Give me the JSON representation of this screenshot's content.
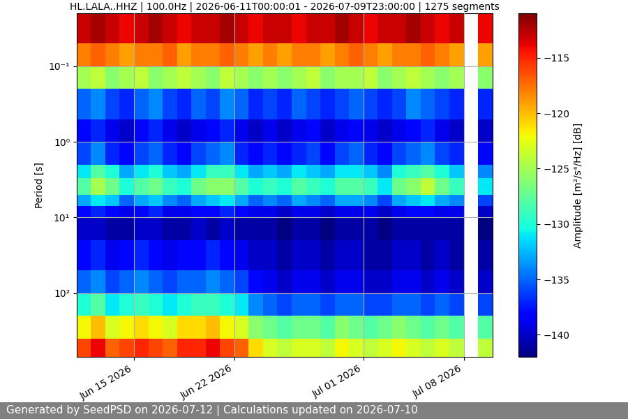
{
  "chart_data": {
    "type": "heatmap",
    "title": "HL.LALA..HHZ | 100.0Hz | 2026-06-11T00:00:01 - 2026-07-09T23:00:00 | 1275 segments",
    "y_label": "Period [s]",
    "colorbar_label": "Amplitude [m²/s⁴/Hz] [dB]",
    "footer": "Generated by SeedPSD on 2026-07-12 | Calculations updated on 2026-07-10",
    "log": "y",
    "grid": true,
    "xlim": [
      "2026-06-11",
      "2026-07-10"
    ],
    "xticks": [
      {
        "value": "2026-06-15",
        "label": "Jun 15 2026"
      },
      {
        "value": "2026-06-22",
        "label": "Jun 22 2026"
      },
      {
        "value": "2026-07-01",
        "label": "Jul 01 2026"
      },
      {
        "value": "2026-07-08",
        "label": "Jul 08 2026"
      }
    ],
    "ylim": [
      700,
      0.02
    ],
    "yticks": [
      {
        "value": 0.1,
        "label": "10⁻¹"
      },
      {
        "value": 1,
        "label": "10⁰"
      },
      {
        "value": 10,
        "label": "10¹"
      },
      {
        "value": 100,
        "label": "10²"
      }
    ],
    "colorbar_range": [
      -142,
      -111
    ],
    "colorbar_ticks": [
      {
        "value": -115,
        "label": "−115"
      },
      {
        "value": -120,
        "label": "−120"
      },
      {
        "value": -125,
        "label": "−125"
      },
      {
        "value": -130,
        "label": "−130"
      },
      {
        "value": -135,
        "label": "−135"
      },
      {
        "value": -140,
        "label": "−140"
      }
    ],
    "x_edges": [
      "2026-06-11",
      "2026-06-12",
      "2026-06-13",
      "2026-06-14",
      "2026-06-15",
      "2026-06-16",
      "2026-06-17",
      "2026-06-18",
      "2026-06-19",
      "2026-06-20",
      "2026-06-21",
      "2026-06-22",
      "2026-06-23",
      "2026-06-24",
      "2026-06-25",
      "2026-06-26",
      "2026-06-27",
      "2026-06-28",
      "2026-06-29",
      "2026-06-30",
      "2026-07-01",
      "2026-07-02",
      "2026-07-03",
      "2026-07-04",
      "2026-07-05",
      "2026-07-06",
      "2026-07-07",
      "2026-07-08",
      "2026-07-09",
      "2026-07-10"
    ],
    "y_edges": [
      0.02,
      0.05,
      0.1,
      0.2,
      0.5,
      1,
      2,
      3,
      5,
      7,
      10,
      20,
      50,
      100,
      200,
      400,
      700
    ],
    "cells": [
      [
        -113,
        -112,
        -113,
        -114,
        -113,
        -112,
        -113,
        -114,
        -113,
        -113,
        -112,
        -113,
        -114,
        -113,
        -113,
        -114,
        -113,
        -113,
        -112,
        -113,
        -114,
        -113,
        -113,
        -112,
        -113,
        -114,
        -113,
        null,
        -114
      ],
      [
        -118,
        -117,
        -118,
        -119,
        -118,
        -118,
        -117,
        -119,
        -118,
        -118,
        -117,
        -118,
        -119,
        -118,
        -119,
        -118,
        -118,
        -119,
        -118,
        -117,
        -118,
        -119,
        -118,
        -118,
        -117,
        -118,
        -119,
        null,
        -119
      ],
      [
        -125,
        -124,
        -126,
        -125,
        -124,
        -126,
        -125,
        -124,
        -125,
        -126,
        -124,
        -125,
        -126,
        -125,
        -126,
        -125,
        -124,
        -126,
        -125,
        -125,
        -124,
        -126,
        -125,
        -124,
        -125,
        -126,
        -125,
        null,
        -126
      ],
      [
        -135,
        -134,
        -136,
        -137,
        -135,
        -134,
        -136,
        -137,
        -135,
        -136,
        -134,
        -135,
        -137,
        -136,
        -137,
        -135,
        -136,
        -137,
        -136,
        -135,
        -136,
        -137,
        -136,
        -134,
        -135,
        -136,
        -137,
        null,
        -137
      ],
      [
        -138,
        -137,
        -139,
        -140,
        -138,
        -137,
        -139,
        -140,
        -139,
        -138,
        -137,
        -139,
        -140,
        -139,
        -140,
        -139,
        -138,
        -140,
        -139,
        -138,
        -139,
        -140,
        -139,
        -138,
        -137,
        -139,
        -140,
        null,
        -140
      ],
      [
        -136,
        -134,
        -137,
        -138,
        -136,
        -135,
        -137,
        -138,
        -136,
        -135,
        -134,
        -137,
        -138,
        -137,
        -138,
        -137,
        -136,
        -138,
        -136,
        -135,
        -137,
        -138,
        -136,
        -135,
        -134,
        -136,
        -137,
        null,
        -138
      ],
      [
        -131,
        -128,
        -130,
        -133,
        -131,
        -130,
        -132,
        -133,
        -131,
        -129,
        -129,
        -131,
        -133,
        -132,
        -133,
        -131,
        -132,
        -133,
        -131,
        -131,
        -132,
        -134,
        -130,
        -129,
        -128,
        -130,
        -132,
        null,
        -134
      ],
      [
        -128,
        -125,
        -127,
        -130,
        -128,
        -127,
        -129,
        -130,
        -127,
        -126,
        -126,
        -128,
        -130,
        -129,
        -130,
        -128,
        -129,
        -130,
        -128,
        -128,
        -129,
        -131,
        -127,
        -126,
        -124,
        -127,
        -129,
        null,
        -131
      ],
      [
        -133,
        -131,
        -132,
        -135,
        -133,
        -132,
        -134,
        -135,
        -133,
        -132,
        -131,
        -133,
        -135,
        -134,
        -135,
        -133,
        -134,
        -135,
        -133,
        -133,
        -134,
        -136,
        -133,
        -132,
        -131,
        -133,
        -134,
        null,
        -136
      ],
      [
        -138,
        -137,
        -138,
        -139,
        -138,
        -137,
        -139,
        -139,
        -138,
        -138,
        -137,
        -138,
        -139,
        -139,
        -140,
        -139,
        -139,
        -140,
        -139,
        -139,
        -139,
        -140,
        -139,
        -138,
        -138,
        -139,
        -139,
        null,
        -140
      ],
      [
        -140,
        -140,
        -141,
        -141,
        -140,
        -140,
        -141,
        -141,
        -140,
        -141,
        -140,
        -141,
        -141,
        -141,
        -142,
        -141,
        -141,
        -142,
        -141,
        -141,
        -141,
        -142,
        -141,
        -141,
        -141,
        -141,
        -141,
        null,
        -142
      ],
      [
        -138,
        -137,
        -139,
        -138,
        -137,
        -138,
        -139,
        -138,
        -138,
        -137,
        -138,
        -139,
        -140,
        -140,
        -141,
        -140,
        -140,
        -141,
        -140,
        -140,
        -141,
        -141,
        -140,
        -140,
        -141,
        -140,
        -141,
        null,
        -141
      ],
      [
        -135,
        -134,
        -136,
        -135,
        -134,
        -135,
        -136,
        -135,
        -135,
        -134,
        -135,
        -136,
        -138,
        -139,
        -140,
        -139,
        -139,
        -140,
        -139,
        -139,
        -140,
        -140,
        -139,
        -139,
        -140,
        -139,
        -140,
        null,
        -140
      ],
      [
        -130,
        -128,
        -131,
        -130,
        -129,
        -130,
        -131,
        -130,
        -129,
        -129,
        -130,
        -131,
        -134,
        -135,
        -136,
        -135,
        -135,
        -136,
        -135,
        -135,
        -136,
        -136,
        -135,
        -135,
        -136,
        -135,
        -136,
        null,
        -136
      ],
      [
        -122,
        -120,
        -123,
        -122,
        -121,
        -122,
        -123,
        -121,
        -121,
        -120,
        -122,
        -123,
        -126,
        -127,
        -128,
        -127,
        -127,
        -128,
        -126,
        -127,
        -128,
        -127,
        -126,
        -127,
        -128,
        -127,
        -128,
        null,
        -128
      ],
      [
        -116,
        -114,
        -117,
        -116,
        -115,
        -116,
        -117,
        -115,
        -115,
        -114,
        -116,
        -117,
        -121,
        -123,
        -124,
        -123,
        -123,
        -124,
        -122,
        -123,
        -124,
        -123,
        -122,
        -123,
        -124,
        -123,
        -124,
        null,
        -124
      ]
    ]
  }
}
